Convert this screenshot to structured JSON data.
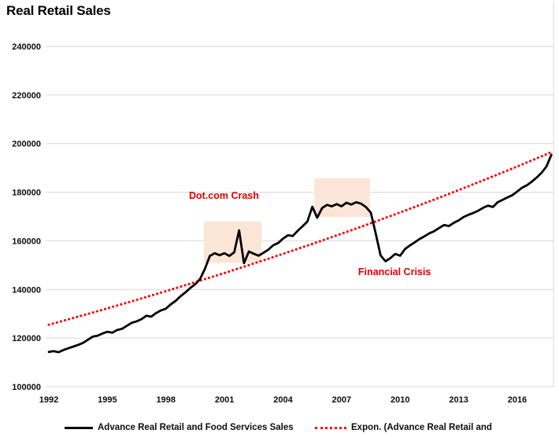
{
  "header": {
    "title": "Real Retail Sales"
  },
  "chart_data": {
    "type": "line",
    "title": "Real Retail Sales",
    "x_axis": {
      "ticks": [
        1992,
        1995,
        1998,
        2001,
        2004,
        2007,
        2010,
        2013,
        2016
      ],
      "range": [
        1992,
        2017.85
      ],
      "gridlines": false
    },
    "y_axis": {
      "ticks": [
        100000,
        120000,
        140000,
        160000,
        180000,
        200000,
        220000,
        240000
      ],
      "range": [
        100000,
        240000
      ],
      "gridlines": true
    },
    "grid_color": "#d9d9d9",
    "series": [
      {
        "name": "Advance Real Retail and Food Services Sales",
        "color": "#000000",
        "style": "solid",
        "x_start": 1992,
        "x_step": 0.25,
        "values": [
          114300,
          114600,
          114200,
          115100,
          115800,
          116500,
          117200,
          118000,
          119300,
          120600,
          121000,
          121900,
          122600,
          122200,
          123300,
          123800,
          125100,
          126300,
          126900,
          127800,
          129200,
          128800,
          130300,
          131400,
          132100,
          133900,
          135300,
          137200,
          138800,
          140600,
          142100,
          144300,
          148500,
          153800,
          154900,
          154100,
          154900,
          153800,
          155300,
          164300,
          150800,
          155600,
          154700,
          153900,
          155100,
          156400,
          158200,
          159100,
          160900,
          162300,
          162000,
          164100,
          166000,
          168000,
          174000,
          169500,
          173500,
          174800,
          174200,
          175100,
          174200,
          175700,
          174900,
          175900,
          175300,
          173900,
          171600,
          163000,
          154000,
          151600,
          152900,
          154600,
          153900,
          156600,
          158100,
          159400,
          160800,
          161900,
          163100,
          164000,
          165300,
          166500,
          166100,
          167400,
          168400,
          169800,
          170700,
          171500,
          172400,
          173600,
          174500,
          173900,
          175900,
          176900,
          177900,
          178800,
          180300,
          181900,
          182900,
          184400,
          186100,
          188000,
          190600,
          195400
        ]
      },
      {
        "name": "Expon. (Advance Real Retail and",
        "color": "#ff0000",
        "style": "dotted",
        "trend": {
          "type": "exponential",
          "x_start": 1992,
          "y_start": 125500,
          "x_end": 2017.75,
          "y_end": 196500
        }
      }
    ],
    "annotations": [
      {
        "label": "Dot.com Crash",
        "color": "#e00000",
        "x": 1999.18,
        "y": 180900
      },
      {
        "label": "Financial Crisis",
        "color": "#e00000",
        "x": 2007.85,
        "y": 149400
      }
    ],
    "highlight_boxes": [
      {
        "name": "dotcom-crash-box",
        "x0": 1999.95,
        "x1": 2002.9,
        "y0": 151000,
        "y1": 168000,
        "fill": "#fbe5d6"
      },
      {
        "name": "financial-crisis-box",
        "x0": 2005.6,
        "x1": 2008.45,
        "y0": 169800,
        "y1": 185800,
        "fill": "#fbe5d6"
      }
    ],
    "legend": {
      "position": "bottom",
      "entries": [
        {
          "label": "Advance Real Retail and Food Services Sales",
          "color": "#000000",
          "style": "solid"
        },
        {
          "label": "Expon. (Advance Real Retail and",
          "color": "#ff0000",
          "style": "dotted"
        }
      ]
    }
  }
}
